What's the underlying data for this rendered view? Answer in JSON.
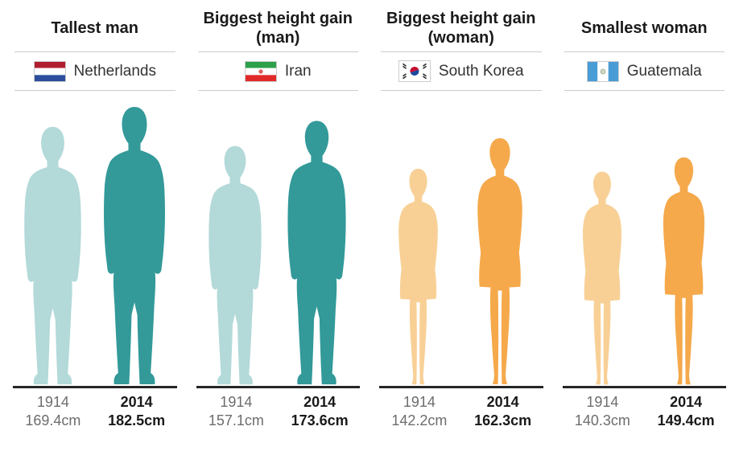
{
  "chart_data": {
    "type": "pictogram-comparison",
    "unit": "cm",
    "years": [
      "1914",
      "2014"
    ],
    "colors": {
      "man_1914": "#b3d9d9",
      "man_2014": "#339999",
      "woman_1914": "#f8d096",
      "woman_2014": "#f5a94b"
    },
    "layout_hint": "four columns, paired human silhouettes scaled to height, baseline under feet",
    "groups": [
      {
        "title": "Tallest man",
        "country": "Netherlands",
        "flag": "netherlands-flag",
        "figure": "man",
        "values": [
          169.4,
          182.5
        ],
        "value_labels": [
          "169.4cm",
          "182.5cm"
        ],
        "year_labels": [
          "1914",
          "2014"
        ]
      },
      {
        "title": "Biggest height gain (man)",
        "country": "Iran",
        "flag": "iran-flag",
        "figure": "man",
        "values": [
          157.1,
          173.6
        ],
        "value_labels": [
          "157.1cm",
          "173.6cm"
        ],
        "year_labels": [
          "1914",
          "2014"
        ]
      },
      {
        "title": "Biggest height gain (woman)",
        "country": "South Korea",
        "flag": "south-korea-flag",
        "figure": "woman",
        "values": [
          142.2,
          162.3
        ],
        "value_labels": [
          "142.2cm",
          "162.3cm"
        ],
        "year_labels": [
          "1914",
          "2014"
        ]
      },
      {
        "title": "Smallest woman",
        "country": "Guatemala",
        "flag": "guatemala-flag",
        "figure": "woman",
        "values": [
          140.3,
          149.4
        ],
        "value_labels": [
          "140.3cm",
          "149.4cm"
        ],
        "year_labels": [
          "1914",
          "2014"
        ]
      }
    ]
  }
}
